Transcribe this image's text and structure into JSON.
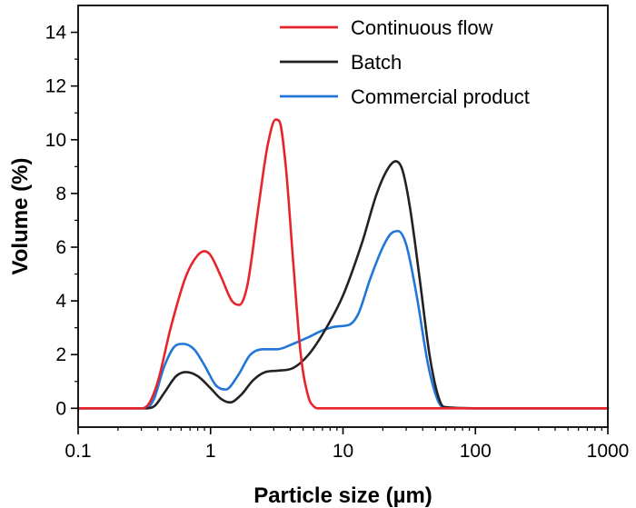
{
  "chart_data": {
    "type": "line",
    "title": "",
    "xlabel": "Particle size (µm)",
    "ylabel": "Volume (%)",
    "xscale": "log",
    "xlim": [
      0.1,
      1000
    ],
    "ylim": [
      -0.7,
      15
    ],
    "xticks": [
      0.1,
      1,
      10,
      100,
      1000
    ],
    "xtick_labels": [
      "0.1",
      "1",
      "10",
      "100",
      "1000"
    ],
    "yticks": [
      0,
      2,
      4,
      6,
      8,
      10,
      12,
      14
    ],
    "ytick_labels": [
      "0",
      "2",
      "4",
      "6",
      "8",
      "10",
      "12",
      "14"
    ],
    "legend_position": "top-right",
    "grid": false,
    "series": [
      {
        "name": "Continuous flow",
        "color": "#e8242b",
        "x": [
          0.1,
          0.3,
          0.34,
          0.4,
          0.5,
          0.65,
          0.8,
          0.9,
          1.0,
          1.2,
          1.45,
          1.65,
          1.9,
          2.3,
          2.7,
          3.1,
          3.3,
          3.7,
          4.2,
          4.8,
          5.5,
          6.0,
          6.5,
          10,
          100,
          1000
        ],
        "y": [
          0,
          0,
          0.15,
          1.0,
          3.0,
          4.9,
          5.7,
          5.85,
          5.7,
          4.9,
          4.0,
          3.85,
          4.6,
          7.5,
          9.8,
          10.75,
          10.7,
          9.0,
          5.5,
          2.0,
          0.4,
          0.08,
          0,
          0,
          0,
          0
        ]
      },
      {
        "name": "Batch",
        "color": "#222222",
        "x": [
          0.1,
          0.33,
          0.38,
          0.45,
          0.55,
          0.65,
          0.8,
          1.0,
          1.2,
          1.4,
          1.7,
          2.1,
          2.6,
          3.2,
          4.2,
          5.5,
          7.5,
          10,
          14,
          18,
          22,
          25,
          28,
          32,
          38,
          45,
          52,
          58,
          100,
          1000
        ],
        "y": [
          0,
          0,
          0.1,
          0.6,
          1.2,
          1.35,
          1.2,
          0.75,
          0.35,
          0.22,
          0.5,
          1.05,
          1.35,
          1.4,
          1.5,
          2.0,
          3.0,
          4.2,
          6.2,
          8.0,
          8.95,
          9.2,
          8.9,
          7.5,
          4.8,
          2.0,
          0.5,
          0.05,
          0,
          0
        ]
      },
      {
        "name": "Commercial product",
        "color": "#2176d8",
        "x": [
          0.1,
          0.32,
          0.37,
          0.45,
          0.55,
          0.62,
          0.75,
          0.9,
          1.1,
          1.3,
          1.6,
          2.0,
          2.5,
          3.2,
          4.2,
          5.5,
          7.0,
          9.0,
          11,
          13,
          16,
          20,
          23,
          26,
          30,
          36,
          44,
          52,
          58,
          100,
          1000
        ],
        "y": [
          0,
          0,
          0.3,
          1.6,
          2.35,
          2.4,
          2.2,
          1.6,
          0.85,
          0.7,
          1.2,
          2.0,
          2.2,
          2.2,
          2.4,
          2.65,
          2.9,
          3.05,
          3.1,
          3.5,
          4.8,
          6.0,
          6.5,
          6.6,
          6.1,
          4.2,
          1.6,
          0.3,
          0.03,
          0,
          0
        ]
      }
    ]
  }
}
